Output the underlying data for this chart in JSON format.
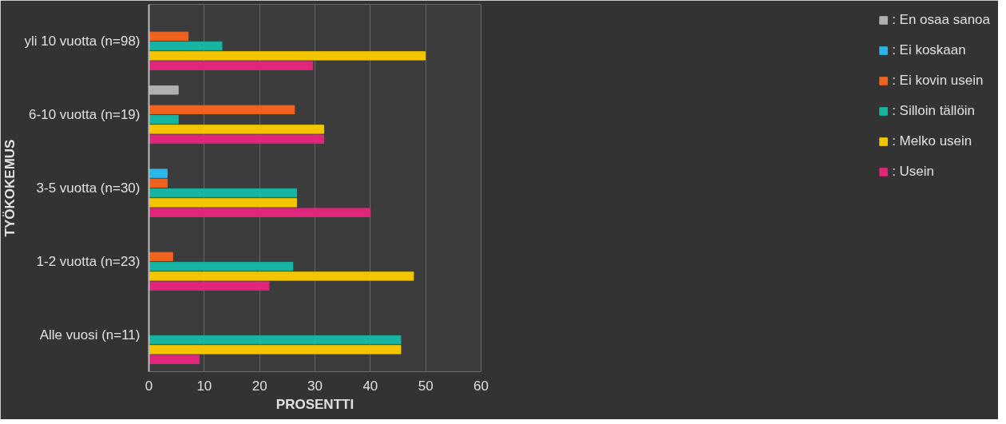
{
  "chart_data": {
    "type": "bar",
    "orientation": "horizontal",
    "xlabel": "PROSENTTI",
    "ylabel": "TYÖKOKEMUS",
    "categories": [
      "yli 10 vuotta (n=98)",
      "6-10 vuotta (n=19)",
      "3-5 vuotta (n=30)",
      "1-2 vuotta (n=23)",
      "Alle vuosi (n=11)"
    ],
    "series": [
      {
        "name": ": Usein",
        "color": "#e0267a",
        "values": [
          29.6,
          31.6,
          40.0,
          21.7,
          9.1
        ]
      },
      {
        "name": ": Melko usein",
        "color": "#f2c500",
        "values": [
          49.9,
          31.6,
          26.7,
          47.8,
          45.5
        ]
      },
      {
        "name": ": Silloin tällöin",
        "color": "#17b3a3",
        "values": [
          13.2,
          5.3,
          26.7,
          26.0,
          45.5
        ]
      },
      {
        "name": ": Ei kovin usein",
        "color": "#f0631e",
        "values": [
          7.1,
          26.3,
          3.3,
          4.3,
          0
        ]
      },
      {
        "name": ": Ei koskaan",
        "color": "#29b6e8",
        "values": [
          0,
          0,
          3.3,
          0,
          0
        ]
      },
      {
        "name": ": En osaa sanoa",
        "color": "#b0b0b0",
        "values": [
          0,
          5.3,
          0,
          0,
          0
        ]
      }
    ],
    "xlim": [
      0,
      60
    ],
    "xticks": [
      0,
      10,
      20,
      30,
      40,
      50,
      60
    ],
    "grid": "x",
    "legend": "right"
  }
}
